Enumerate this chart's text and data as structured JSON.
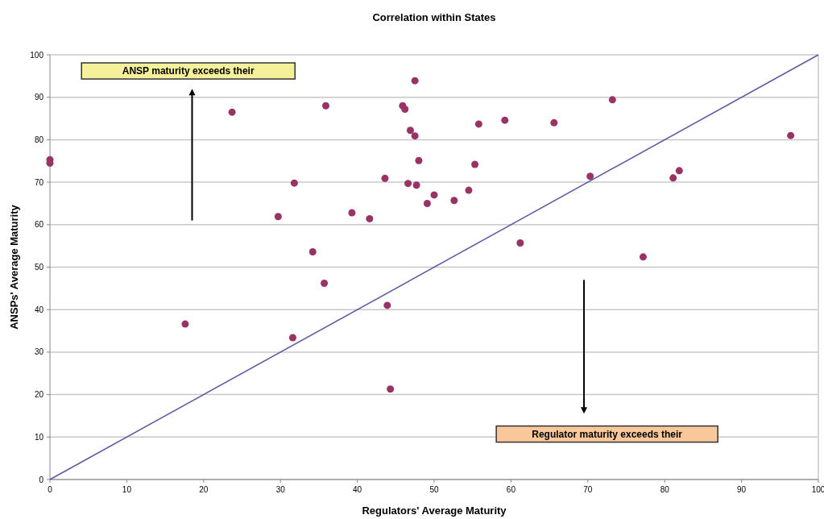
{
  "chart_data": {
    "type": "scatter",
    "title": "Correlation within States",
    "xlabel": "Regulators' Average Maturity",
    "ylabel": "ANSPs' Average Maturity",
    "annotations": [
      "ANSP maturity exceeds their",
      "Regulator maturity exceeds their"
    ],
    "xlim": [
      0,
      100
    ],
    "ylim": [
      0,
      100
    ],
    "xticks": [
      0,
      10,
      20,
      30,
      40,
      50,
      60,
      70,
      80,
      90,
      100
    ],
    "yticks": [
      0,
      10,
      20,
      30,
      40,
      50,
      60,
      70,
      80,
      90,
      100
    ],
    "grid": "y",
    "marker": "circle",
    "series": [
      {
        "color": "#993366",
        "x": [
          0,
          0,
          23.7,
          35.9,
          47.5,
          45.9,
          46.2,
          46.9,
          47.5,
          55.8,
          59.2,
          48.0,
          55.3,
          31.8,
          43.6,
          46.6,
          47.7,
          50.0,
          49.1,
          52.6,
          54.5,
          29.7,
          39.3,
          41.6,
          34.2,
          61.2,
          35.7,
          65.6,
          73.2,
          96.4,
          70.3,
          81.1,
          81.9,
          77.2,
          17.6,
          31.6,
          43.9,
          44.3
        ],
        "values": [
          75.3,
          74.5,
          86.5,
          88.0,
          93.9,
          88.0,
          87.2,
          82.2,
          80.9,
          83.7,
          84.6,
          75.1,
          74.2,
          69.8,
          70.9,
          69.7,
          69.3,
          67.0,
          65.0,
          65.7,
          68.1,
          61.9,
          62.8,
          61.4,
          53.6,
          55.7,
          46.2,
          84.0,
          89.4,
          81.0,
          71.4,
          71.0,
          72.7,
          52.4,
          36.6,
          33.4,
          41.0,
          21.3
        ]
      },
      {
        "type": "line",
        "color": "#5a5aa0",
        "marker": "none",
        "x": [
          0,
          100
        ],
        "values": [
          0,
          100
        ]
      }
    ]
  }
}
